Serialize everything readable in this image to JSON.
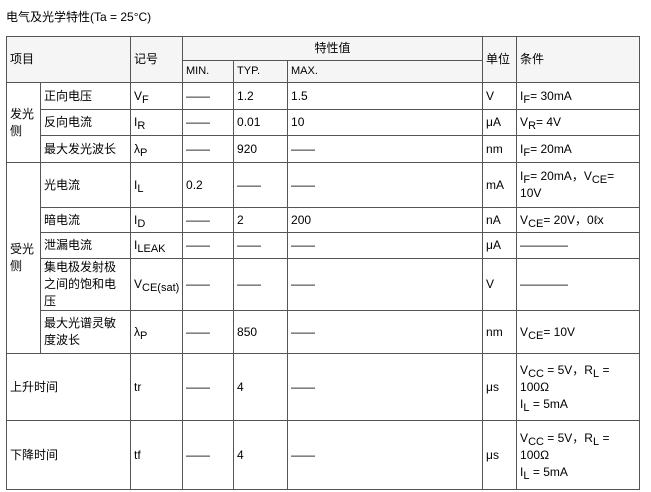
{
  "title": "电气及光学特性(Ta = 25°C)",
  "header": {
    "item": "项目",
    "symbol": "记号",
    "values": "特性值",
    "min": "MIN.",
    "typ": "TYP.",
    "max": "MAX.",
    "unit": "单位",
    "condition": "条件"
  },
  "groups": [
    {
      "label": "发光侧",
      "rows": [
        {
          "item": "正向电压",
          "symbol": [
            {
              "text": "V"
            },
            {
              "sub": "F"
            }
          ],
          "min": "——",
          "typ": "1.2",
          "max": "1.5",
          "unit": "V",
          "condition": [
            [
              {
                "text": "I"
              },
              {
                "sub": "F"
              },
              {
                "text": "= 30mA"
              }
            ]
          ]
        },
        {
          "item": "反向电流",
          "symbol": [
            {
              "text": "I"
            },
            {
              "sub": "R"
            }
          ],
          "min": "——",
          "typ": "0.01",
          "max": "10",
          "unit": "μA",
          "condition": [
            [
              {
                "text": "V"
              },
              {
                "sub": "R"
              },
              {
                "text": "= 4V"
              }
            ]
          ]
        },
        {
          "item": "最大发光波长",
          "symbol": [
            {
              "text": "λ"
            },
            {
              "sub": "P"
            }
          ],
          "min": "——",
          "typ": "920",
          "max": "——",
          "unit": "nm",
          "condition": [
            [
              {
                "text": "I"
              },
              {
                "sub": "F"
              },
              {
                "text": "= 20mA"
              }
            ]
          ]
        }
      ]
    },
    {
      "label": "受光侧",
      "rows": [
        {
          "item": "光电流",
          "symbol": [
            {
              "text": "I"
            },
            {
              "sub": "L"
            }
          ],
          "min": "0.2",
          "typ": "——",
          "max": "——",
          "unit": "mA",
          "condition": [
            [
              {
                "text": "I"
              },
              {
                "sub": "F"
              },
              {
                "text": "= 20mA，V"
              },
              {
                "sub": "CE"
              },
              {
                "text": "="
              }
            ],
            [
              {
                "text": "10V"
              }
            ]
          ]
        },
        {
          "item": "暗电流",
          "symbol": [
            {
              "text": "I"
            },
            {
              "sub": "D"
            }
          ],
          "min": "——",
          "typ": "2",
          "max": "200",
          "unit": "nA",
          "condition": [
            [
              {
                "text": "V"
              },
              {
                "sub": "CE"
              },
              {
                "text": "= 20V，0ℓx"
              }
            ]
          ]
        },
        {
          "item": "泄漏电流",
          "symbol": [
            {
              "text": "I"
            },
            {
              "sub": "LEAK"
            }
          ],
          "min": "——",
          "typ": "——",
          "max": "——",
          "unit": "μA",
          "condition": [
            [
              {
                "text": "————"
              }
            ]
          ]
        },
        {
          "item": "集电极发射极之间的饱和电压",
          "symbol": [
            {
              "text": "V"
            },
            {
              "sub": "CE(sat)"
            }
          ],
          "min": "——",
          "typ": "——",
          "max": "——",
          "unit": "V",
          "condition": [
            [
              {
                "text": "————"
              }
            ]
          ]
        },
        {
          "item": "最大光谱灵敏度波长",
          "symbol": [
            {
              "text": "λ"
            },
            {
              "sub": "P"
            }
          ],
          "min": "——",
          "typ": "850",
          "max": "——",
          "unit": "nm",
          "condition": [
            [
              {
                "text": "V"
              },
              {
                "sub": "CE"
              },
              {
                "text": "= 10V"
              }
            ]
          ]
        }
      ]
    },
    {
      "label": "上升时间",
      "rows": [
        {
          "symbol": [
            {
              "text": "tr"
            }
          ],
          "min": "——",
          "typ": "4",
          "max": "——",
          "unit": "μs",
          "condition": [
            [
              {
                "text": "V"
              },
              {
                "sub": "CC"
              },
              {
                "text": " = 5V，R"
              },
              {
                "sub": "L"
              },
              {
                "text": " ="
              }
            ],
            [
              {
                "text": "100Ω"
              }
            ],
            [
              {
                "text": "I"
              },
              {
                "sub": "L"
              },
              {
                "text": " = 5mA"
              }
            ]
          ]
        }
      ]
    },
    {
      "label": "下降时间",
      "rows": [
        {
          "symbol": [
            {
              "text": "tf"
            }
          ],
          "min": "——",
          "typ": "4",
          "max": "——",
          "unit": "μs",
          "condition": [
            [
              {
                "text": "V"
              },
              {
                "sub": "CC"
              },
              {
                "text": " = 5V，R"
              },
              {
                "sub": "L"
              },
              {
                "text": " ="
              }
            ],
            [
              {
                "text": "100Ω"
              }
            ],
            [
              {
                "text": "I"
              },
              {
                "sub": "L"
              },
              {
                "text": " = 5mA"
              }
            ]
          ]
        }
      ]
    }
  ]
}
